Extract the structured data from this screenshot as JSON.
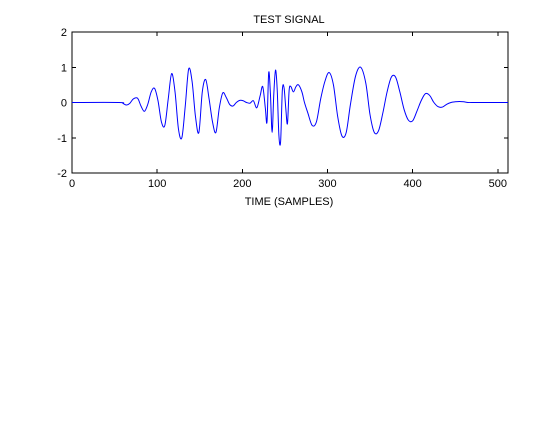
{
  "chart_data": {
    "type": "line",
    "title": "TEST SIGNAL",
    "xlabel": "TIME (SAMPLES)",
    "ylabel": "",
    "xlim": [
      0,
      512
    ],
    "ylim": [
      -2,
      2
    ],
    "x_ticks": [
      0,
      100,
      200,
      300,
      400,
      500
    ],
    "y_ticks": [
      -2,
      -1,
      0,
      1,
      2
    ],
    "grid": false,
    "line_color": "#0000ff",
    "axis_color": "#000000",
    "background": "#ffffff",
    "series": [
      {
        "x": [
          0,
          55,
          60,
          64,
          68,
          72,
          77,
          81,
          85,
          89,
          93,
          97,
          101,
          105,
          109,
          113,
          117,
          121,
          125,
          129,
          133,
          137,
          141,
          145,
          149,
          153,
          157,
          161,
          165,
          169,
          173,
          177,
          181,
          185,
          189,
          193,
          197,
          201,
          205,
          209,
          213,
          217,
          221,
          224,
          227,
          229,
          231,
          233,
          235,
          237,
          239,
          241,
          243,
          245,
          247,
          249,
          251,
          253,
          255,
          257,
          260,
          263,
          266,
          270,
          273,
          277,
          282,
          287,
          292,
          297,
          302,
          307,
          312,
          317,
          322,
          327,
          333,
          339,
          345,
          350,
          355,
          360,
          365,
          370,
          375,
          380,
          385,
          390,
          395,
          400,
          405,
          410,
          415,
          420,
          425,
          430,
          435,
          440,
          445,
          450,
          455,
          460,
          465,
          470,
          512
        ],
        "y": [
          0,
          0,
          -0.03,
          -0.07,
          -0.02,
          0.1,
          0.12,
          -0.1,
          -0.25,
          -0.05,
          0.3,
          0.4,
          0.05,
          -0.55,
          -0.65,
          0.1,
          0.82,
          0.3,
          -0.75,
          -1.0,
          -0.1,
          0.95,
          0.6,
          -0.4,
          -0.85,
          0.3,
          0.65,
          0.1,
          -0.55,
          -0.85,
          -0.15,
          0.27,
          0.15,
          -0.05,
          -0.1,
          0.0,
          0.06,
          0.05,
          0.0,
          -0.02,
          0.05,
          -0.15,
          0.2,
          0.45,
          -0.15,
          -0.55,
          0.85,
          0.25,
          -0.85,
          0.25,
          0.92,
          0.35,
          -0.95,
          -1.1,
          0.35,
          0.42,
          -0.15,
          -0.6,
          0.35,
          0.45,
          0.3,
          0.45,
          0.5,
          0.3,
          0.0,
          -0.3,
          -0.65,
          -0.55,
          0.1,
          0.6,
          0.85,
          0.5,
          -0.4,
          -0.95,
          -0.85,
          -0.05,
          0.75,
          1.0,
          0.55,
          -0.35,
          -0.85,
          -0.8,
          -0.3,
          0.3,
          0.72,
          0.72,
          0.3,
          -0.2,
          -0.5,
          -0.52,
          -0.25,
          0.05,
          0.25,
          0.2,
          0.0,
          -0.12,
          -0.13,
          -0.05,
          0.0,
          0.02,
          0.03,
          0.02,
          0.0,
          0.0,
          0.0
        ]
      }
    ]
  }
}
